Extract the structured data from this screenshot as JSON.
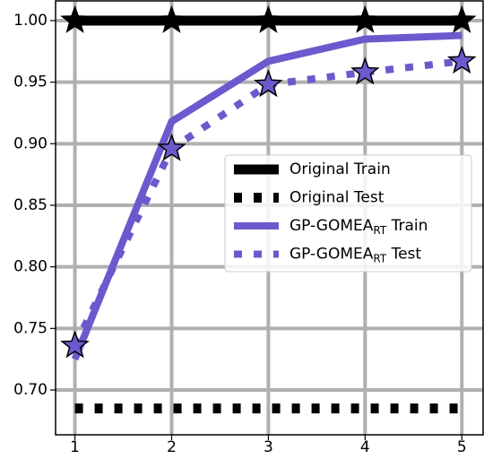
{
  "chart_data": {
    "type": "line",
    "x": [
      1,
      2,
      3,
      4,
      5
    ],
    "series": [
      {
        "name": "Original Train",
        "color": "#000000",
        "linestyle": "solid",
        "marker": "star",
        "values": [
          1.0,
          1.0,
          1.0,
          1.0,
          1.0
        ]
      },
      {
        "name": "Original Test",
        "color": "#000000",
        "linestyle": "dotted",
        "marker": "none",
        "values": [
          0.685,
          0.685,
          0.685,
          0.685,
          0.685
        ]
      },
      {
        "name": "GP-GOMEA_RT Train",
        "color": "#6a5acd",
        "linestyle": "solid",
        "marker": "none",
        "values": [
          0.725,
          0.918,
          0.967,
          0.985,
          0.988
        ]
      },
      {
        "name": "GP-GOMEA_RT Test",
        "color": "#6a5acd",
        "linestyle": "dotted",
        "marker": "star",
        "values": [
          0.736,
          0.896,
          0.948,
          0.958,
          0.967
        ]
      }
    ],
    "xlim": [
      0.8,
      5.22
    ],
    "xticks": [
      1,
      2,
      3,
      4,
      5
    ],
    "ylim": [
      0.6636,
      1.016
    ],
    "yticks": [
      {
        "value": 0.7,
        "label": "0.70"
      },
      {
        "value": 0.75,
        "label": "0.75"
      },
      {
        "value": 0.8,
        "label": "0.80"
      },
      {
        "value": 0.85,
        "label": "0.85"
      },
      {
        "value": 0.9,
        "label": "0.90"
      },
      {
        "value": 0.95,
        "label": "0.95"
      },
      {
        "value": 1.0,
        "label": "1.00"
      }
    ],
    "grid": true,
    "legend": "center right"
  }
}
